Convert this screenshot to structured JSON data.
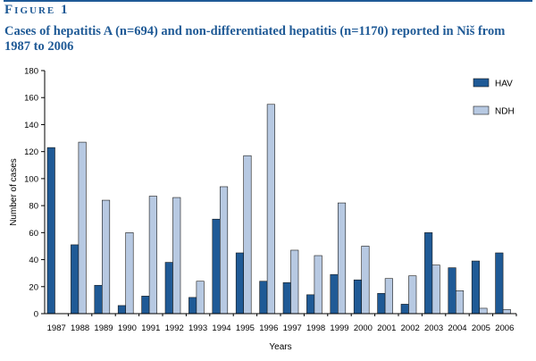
{
  "figure": {
    "label": "Figure 1",
    "title": "Cases of hepatitis A (n=694) and non-differentiated hepatitis (n=1170) reported in Niš from 1987 to 2006"
  },
  "colors": {
    "accent": "#1f5a96",
    "hav": "#1f5a96",
    "ndh": "#b7c9e2"
  },
  "chart_data": {
    "type": "bar",
    "title": "",
    "xlabel": "Years",
    "ylabel": "Number of cases",
    "ylim": [
      0,
      180
    ],
    "yticks": [
      0,
      20,
      40,
      60,
      80,
      100,
      120,
      140,
      160,
      180
    ],
    "grid": false,
    "legend_placement": "right",
    "categories": [
      "1987",
      "1988",
      "1989",
      "1990",
      "1991",
      "1992",
      "1993",
      "1994",
      "1995",
      "1996",
      "1997",
      "1998",
      "1999",
      "2000",
      "2001",
      "2002",
      "2003",
      "2004",
      "2005",
      "2006"
    ],
    "series": [
      {
        "name": "HAV",
        "color": "#1f5a96",
        "values": [
          123,
          51,
          21,
          6,
          13,
          38,
          12,
          70,
          45,
          24,
          23,
          14,
          29,
          25,
          15,
          7,
          60,
          34,
          39,
          45
        ]
      },
      {
        "name": "NDH",
        "color": "#b7c9e2",
        "values": [
          0,
          127,
          84,
          60,
          87,
          86,
          24,
          94,
          117,
          155,
          47,
          43,
          82,
          50,
          26,
          28,
          36,
          17,
          4,
          3
        ]
      }
    ]
  }
}
